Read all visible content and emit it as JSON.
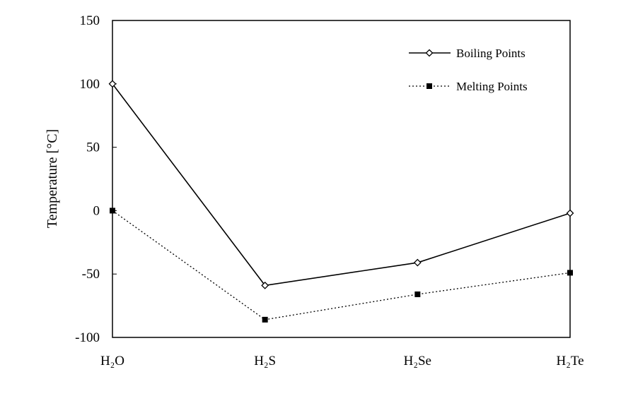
{
  "chart_data": {
    "type": "line",
    "categories": [
      "H₂O",
      "H₂S",
      "H₂Se",
      "H₂Te"
    ],
    "ylabel": "Temperature [°C]",
    "ylim": [
      -100,
      150
    ],
    "yticks": [
      150,
      100,
      50,
      0,
      -50,
      -100
    ],
    "grid": false,
    "legend_position": "top-right",
    "series": [
      {
        "name": "Boiling Points",
        "values": [
          100,
          -59,
          -41,
          -2
        ],
        "line_style": "solid",
        "marker": "open-diamond",
        "color": "#000000"
      },
      {
        "name": "Melting Points",
        "values": [
          0,
          -86,
          -66,
          -49
        ],
        "line_style": "dotted",
        "marker": "filled-square",
        "color": "#000000"
      }
    ]
  }
}
